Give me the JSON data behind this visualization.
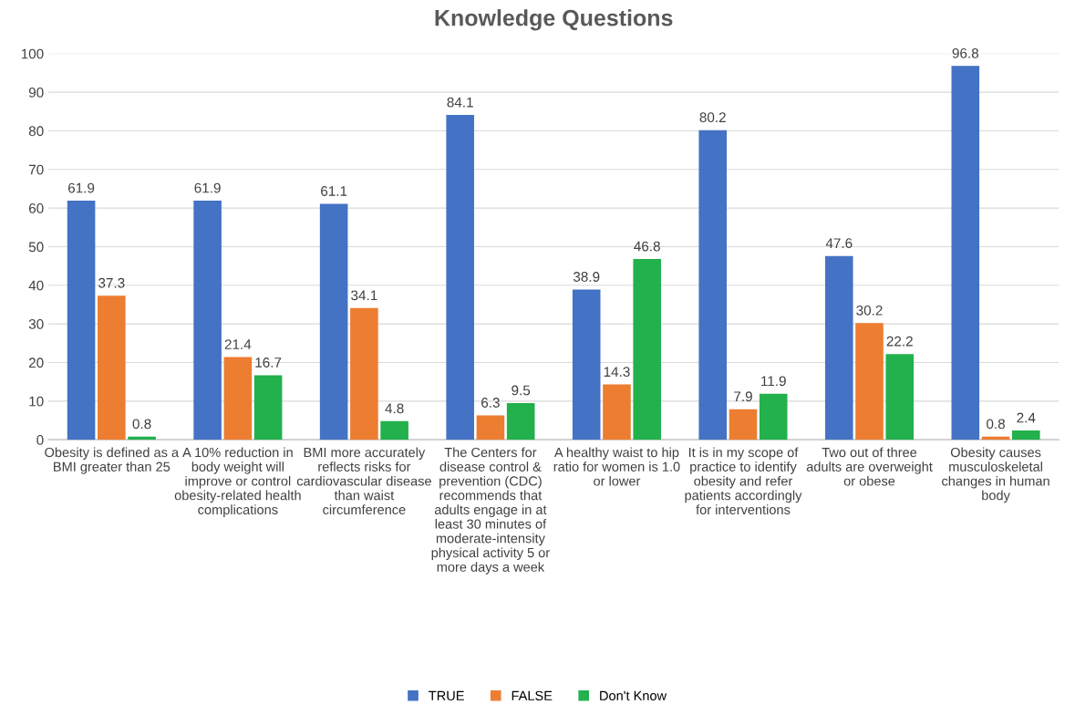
{
  "chart_data": {
    "type": "bar",
    "title": "Knowledge Questions",
    "categories": [
      "Obesity is defined as a\nBMI greater than 25",
      "A 10% reduction in\nbody weight will\nimprove or control\nobesity-related health\ncomplications",
      "BMI more accurately\nreflects risks for\ncardiovascular disease\nthan waist\ncircumference",
      "The Centers for\ndisease control &\nprevention (CDC)\nrecommends that\nadults engage in at\nleast 30 minutes of\nmoderate-intensity\nphysical activity 5 or\nmore days a week",
      "A healthy waist to hip\nratio for women is 1.0\nor lower",
      "It is in my scope of\npractice to identify\nobesity and refer\npatients accordingly\nfor interventions",
      "Two out of three\nadults are overweight\nor obese",
      "Obesity causes\nmusculoskeletal\nchanges in human\nbody"
    ],
    "series": [
      {
        "name": "TRUE",
        "color": "#4472c4",
        "values": [
          61.9,
          61.9,
          61.1,
          84.1,
          38.9,
          80.2,
          47.6,
          96.8
        ]
      },
      {
        "name": "FALSE",
        "color": "#ed7d31",
        "values": [
          37.3,
          21.4,
          34.1,
          6.3,
          14.3,
          7.9,
          30.2,
          0.8
        ]
      },
      {
        "name": "Don't Know",
        "color": "#22b14c",
        "values": [
          0.8,
          16.7,
          4.8,
          9.5,
          46.8,
          11.9,
          22.2,
          2.4
        ]
      }
    ],
    "ylim": [
      0,
      100
    ],
    "yticks": [
      0,
      10,
      20,
      30,
      40,
      50,
      60,
      70,
      80,
      90,
      100
    ],
    "grid": "y",
    "legend": "bottom",
    "data_labels": true
  }
}
